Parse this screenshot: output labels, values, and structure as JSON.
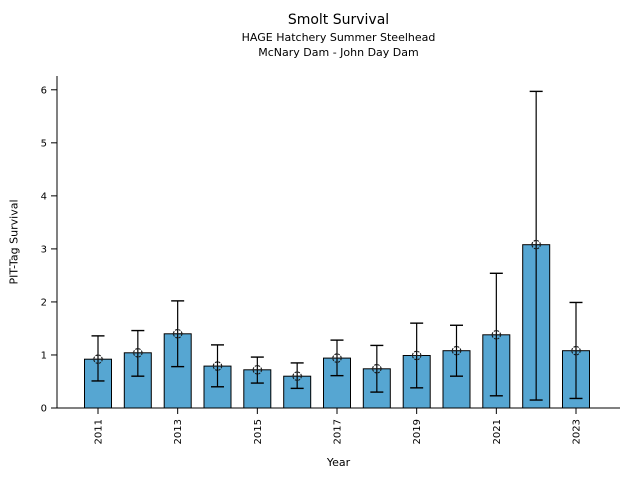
{
  "chart_data": {
    "type": "bar",
    "title": "Smolt Survival",
    "subtitle": [
      "HAGE Hatchery Summer Steelhead",
      "McNary Dam - John Day Dam"
    ],
    "xlabel": "Year",
    "ylabel": "PIT-Tag Survival",
    "categories": [
      2011,
      2012,
      2013,
      2014,
      2015,
      2016,
      2017,
      2018,
      2019,
      2020,
      2021,
      2022,
      2023
    ],
    "values": [
      0.92,
      1.04,
      1.4,
      0.79,
      0.72,
      0.6,
      0.94,
      0.74,
      0.99,
      1.08,
      1.38,
      3.08,
      1.08
    ],
    "error_low": [
      0.51,
      0.6,
      0.78,
      0.4,
      0.47,
      0.37,
      0.61,
      0.3,
      0.38,
      0.6,
      0.23,
      0.15,
      0.18
    ],
    "error_high": [
      1.36,
      1.46,
      2.02,
      1.19,
      0.96,
      0.85,
      1.28,
      1.18,
      1.6,
      1.56,
      2.54,
      5.97,
      1.99
    ],
    "ylim": [
      0,
      6.26
    ],
    "yticks": [
      0,
      1,
      2,
      3,
      4,
      5,
      6
    ],
    "xtick_labels": [
      2011,
      2013,
      2015,
      2017,
      2019,
      2021,
      2023
    ],
    "xtick_rotation": 90,
    "grid": false,
    "legend": "none",
    "marker": "open-circle-plus",
    "colors": {
      "bar_fill": "#56a6d2",
      "bar_edge": "#000000",
      "error_bar": "#000000",
      "axis": "#000000",
      "background": "#ffffff"
    }
  }
}
